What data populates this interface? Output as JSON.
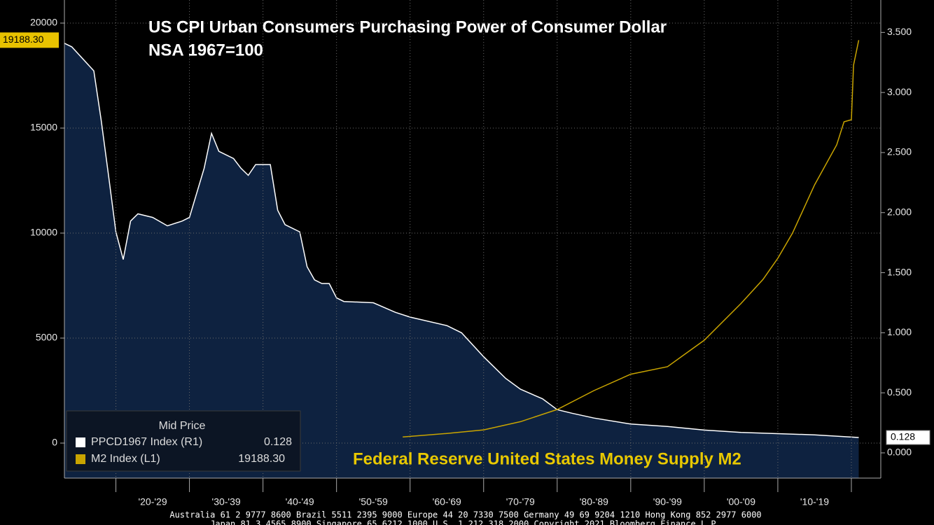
{
  "chart_data": {
    "type": "line",
    "title": "US CPI Urban Consumers Purchasing Power of Consumer Dollar",
    "subtitle": "NSA 1967=100",
    "annotation": "Federal Reserve United States Money Supply M2",
    "legend_title": "Mid Price",
    "footer": [
      "Australia 61 2 9777 8600 Brazil 5511 2395 9000 Europe 44 20 7330 7500 Germany 49 69 9204 1210 Hong Kong 852 2977 6000",
      "Japan 81 3 4565 8900   Singapore 65 6212 1000   U.S. 1 212 318 2000   Copyright 2021 Bloomberg Finance L.P."
    ],
    "xlim": [
      1913,
      2024
    ],
    "xticks": [
      {
        "value": 1925,
        "label": "'20-'29"
      },
      {
        "value": 1935,
        "label": "'30-'39"
      },
      {
        "value": 1945,
        "label": "'40-'49"
      },
      {
        "value": 1955,
        "label": "'50-'59"
      },
      {
        "value": 1965,
        "label": "'60-'69"
      },
      {
        "value": 1975,
        "label": "'70-'79"
      },
      {
        "value": 1985,
        "label": "'80-'89"
      },
      {
        "value": 1995,
        "label": "'90-'99"
      },
      {
        "value": 2005,
        "label": "'00-'09"
      },
      {
        "value": 2015,
        "label": "'10-'19"
      }
    ],
    "xgrid": [
      1920,
      1930,
      1940,
      1950,
      1960,
      1970,
      1980,
      1990,
      2000,
      2010,
      2020
    ],
    "ylim": [
      -1667,
      21100
    ],
    "yticks": [
      0,
      5000,
      10000,
      15000,
      20000
    ],
    "y2lim": [
      -0.21,
      3.77
    ],
    "y2ticks": [
      {
        "value": 0,
        "label": "0.000"
      },
      {
        "value": 0.5,
        "label": "0.500"
      },
      {
        "value": 1,
        "label": "1.000"
      },
      {
        "value": 1.5,
        "label": "1.500"
      },
      {
        "value": 2,
        "label": "2.000"
      },
      {
        "value": 2.5,
        "label": "2.500"
      },
      {
        "value": 3,
        "label": "3.000"
      },
      {
        "value": 3.5,
        "label": "3.500"
      }
    ],
    "grid": true,
    "series": [
      {
        "name": "PPCD1967 Index  (R1)",
        "axis": "y2",
        "style": "area",
        "color": "#ffffff",
        "fill": "#0e2240",
        "last_label": "0.128",
        "x": [
          1913,
          1914,
          1917,
          1918,
          1919,
          1920,
          1921,
          1922,
          1923,
          1925,
          1927,
          1929,
          1930,
          1932,
          1933,
          1934,
          1936,
          1937,
          1938,
          1939,
          1941,
          1942,
          1943,
          1945,
          1946,
          1947,
          1948,
          1949,
          1950,
          1951,
          1955,
          1958,
          1960,
          1965,
          1967,
          1970,
          1973,
          1975,
          1978,
          1980,
          1982,
          1985,
          1990,
          1995,
          2000,
          2005,
          2010,
          2015,
          2021
        ],
        "values": [
          3.41,
          3.38,
          3.18,
          2.77,
          2.31,
          1.84,
          1.61,
          1.93,
          1.99,
          1.96,
          1.89,
          1.93,
          1.96,
          2.37,
          2.66,
          2.51,
          2.45,
          2.37,
          2.31,
          2.4,
          2.4,
          2.02,
          1.9,
          1.84,
          1.55,
          1.44,
          1.41,
          1.41,
          1.29,
          1.26,
          1.25,
          1.17,
          1.13,
          1.06,
          1.0,
          0.8,
          0.62,
          0.53,
          0.45,
          0.36,
          0.33,
          0.29,
          0.24,
          0.22,
          0.19,
          0.17,
          0.16,
          0.15,
          0.128
        ]
      },
      {
        "name": "M2 Index  (L1)",
        "axis": "y",
        "style": "line",
        "color": "#c9a400",
        "last_label": "19188.30",
        "x": [
          1959,
          1965,
          1970,
          1975,
          1980,
          1985,
          1990,
          1995,
          2000,
          2005,
          2008,
          2010,
          2012,
          2015,
          2018,
          2019,
          2020,
          2020.3,
          2021
        ],
        "values": [
          290,
          460,
          630,
          1020,
          1600,
          2500,
          3280,
          3640,
          4900,
          6650,
          7800,
          8800,
          10000,
          12300,
          14200,
          15300,
          15400,
          18000,
          19188.3
        ]
      }
    ]
  }
}
